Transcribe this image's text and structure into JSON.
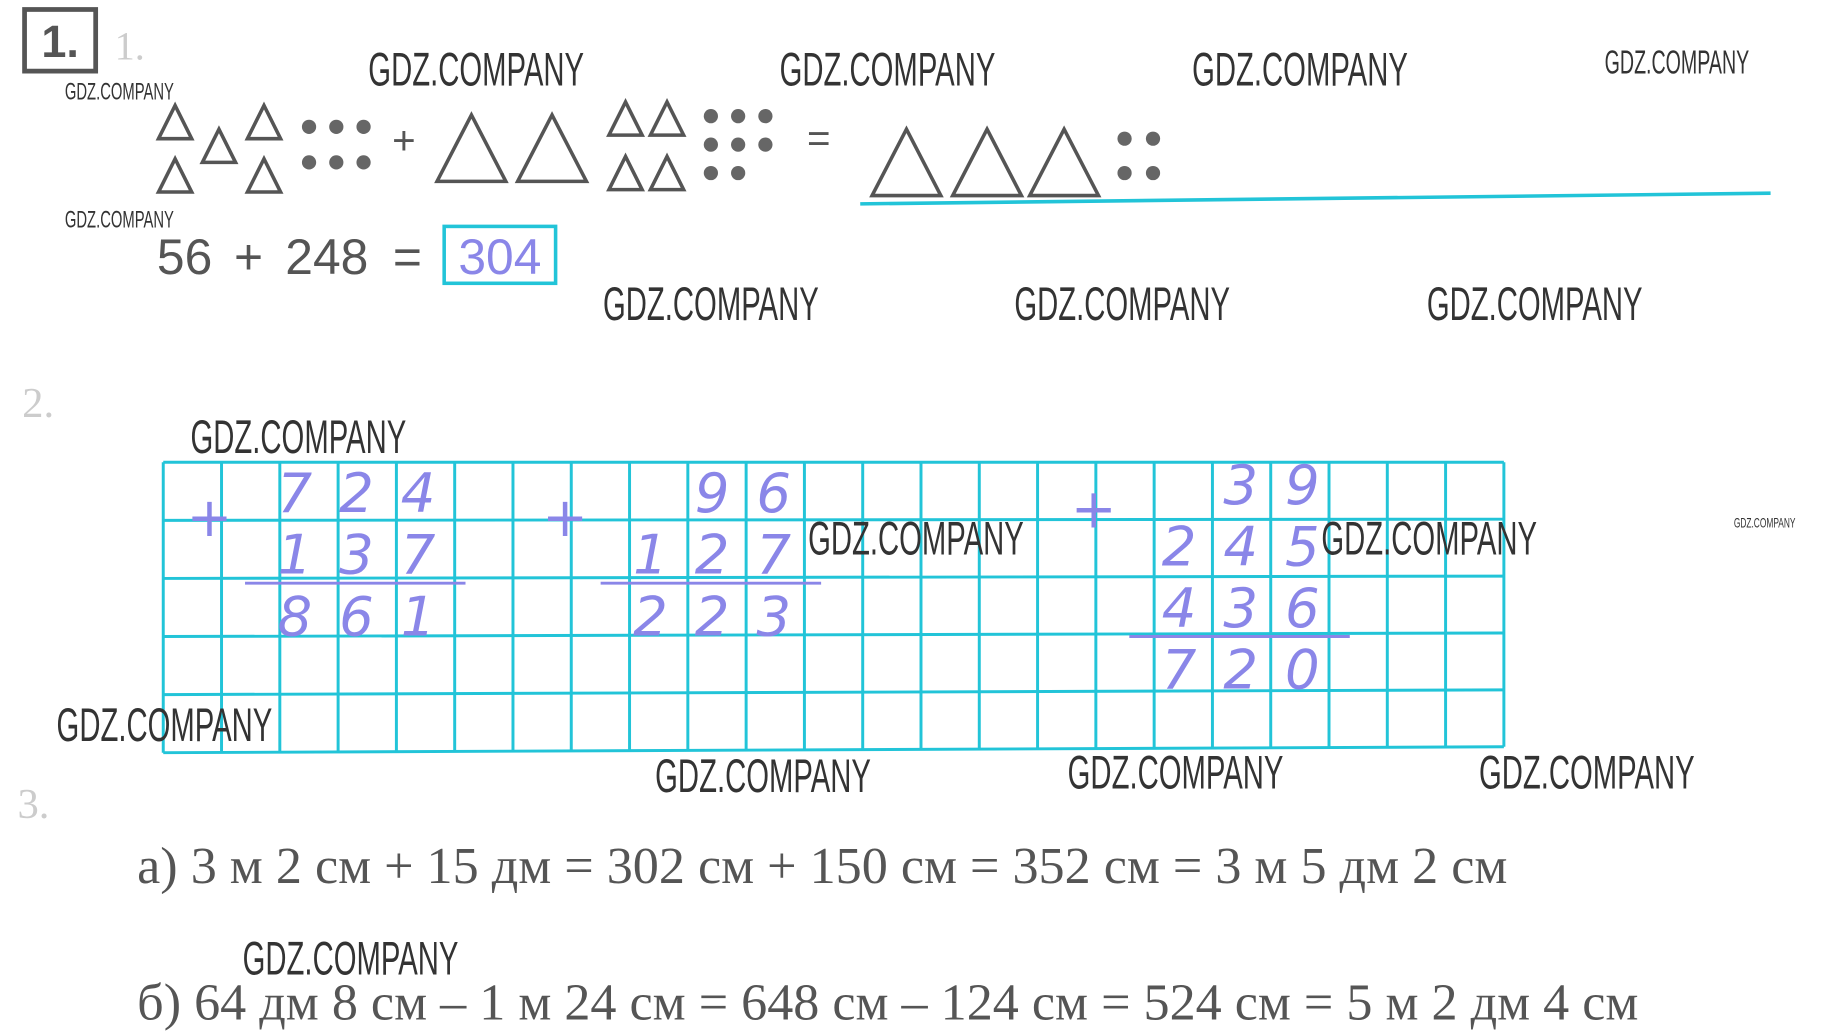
{
  "task_number": "1.",
  "watermarks": [
    "GDZ.COMPANY",
    "GDZ.COMPANY",
    "GDZ.COMPANY",
    "GDZ.COMPANY",
    "GDZ.COMPANY",
    "GDZ.COMPANY",
    "GDZ.COMPANY",
    "GDZ.COMPANY",
    "GDZ.COMPANY",
    "GDZ.COMPANY",
    "GDZ.COMPANY",
    "GDZ.COMPANY",
    "GDZ.COMPANY",
    "GDZ.COMPANY",
    "GDZ.COMPANY",
    "GDZ.COMPANY",
    "GDZ.COMPANY",
    "GDZ.COMPANY"
  ],
  "exercise_1": {
    "label": "1.",
    "plus": "+",
    "equals": "=",
    "equation": [
      "56",
      "+",
      "248",
      "=",
      "304"
    ]
  },
  "exercise_2": {
    "label": "2.",
    "columns": [
      {
        "op": "+",
        "rows": [
          [
            "7",
            "2",
            "4"
          ],
          [
            "1",
            "3",
            "7"
          ]
        ],
        "result": [
          "8",
          "6",
          "1"
        ]
      },
      {
        "op": "+",
        "rows": [
          [
            "9",
            "6"
          ],
          [
            "1",
            "2",
            "7"
          ]
        ],
        "result": [
          "2",
          "2",
          "3"
        ]
      },
      {
        "op": "+",
        "rows": [
          [
            "3",
            "9"
          ],
          [
            "2",
            "4",
            "5"
          ],
          [
            "4",
            "3",
            "6"
          ]
        ],
        "result": [
          "7",
          "2",
          "0"
        ]
      }
    ]
  },
  "exercise_3": {
    "label": "3.",
    "lines": [
      "а) 3 м 2 см + 15 дм = 302 см + 150 см = 352 см = 3 м 5 дм 2 см",
      "б) 64 дм 8 см – 1 м 24 см = 648 см – 124 см = 524 см = 5 м 2 дм 4 см"
    ]
  }
}
